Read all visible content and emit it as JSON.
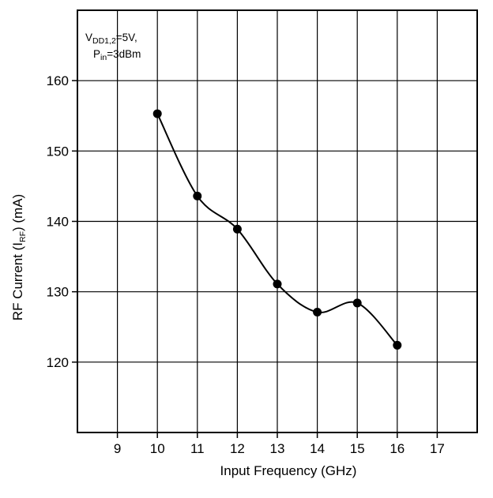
{
  "chart_data": {
    "type": "line",
    "xlabel": "Input Frequency (GHz)",
    "ylabel_main": "RF Current (I",
    "ylabel_sub": "RF",
    "ylabel_tail": ") (mA)",
    "annotation": {
      "line1_main": "V",
      "line1_sub": "DD1,2",
      "line1_tail": "=5V,",
      "line2_main": "P",
      "line2_sub": "in",
      "line2_tail": "=3dBm"
    },
    "xlim": [
      8,
      18
    ],
    "ylim": [
      110,
      170
    ],
    "x_ticks": [
      9,
      10,
      11,
      12,
      13,
      14,
      15,
      16,
      17
    ],
    "y_ticks": [
      120,
      130,
      140,
      150,
      160
    ],
    "x_tick_labels": [
      "9",
      "10",
      "11",
      "12",
      "13",
      "14",
      "15",
      "16",
      "17"
    ],
    "y_tick_labels": [
      "120",
      "130",
      "140",
      "150",
      "160"
    ],
    "grid": true,
    "series": [
      {
        "x": [
          10,
          11,
          12,
          13,
          14,
          15,
          16
        ],
        "values": [
          155.3,
          143.6,
          138.9,
          131.1,
          127.1,
          128.4,
          122.4
        ],
        "color": "#000000",
        "marker": "filled-circle",
        "smooth": true
      }
    ]
  }
}
